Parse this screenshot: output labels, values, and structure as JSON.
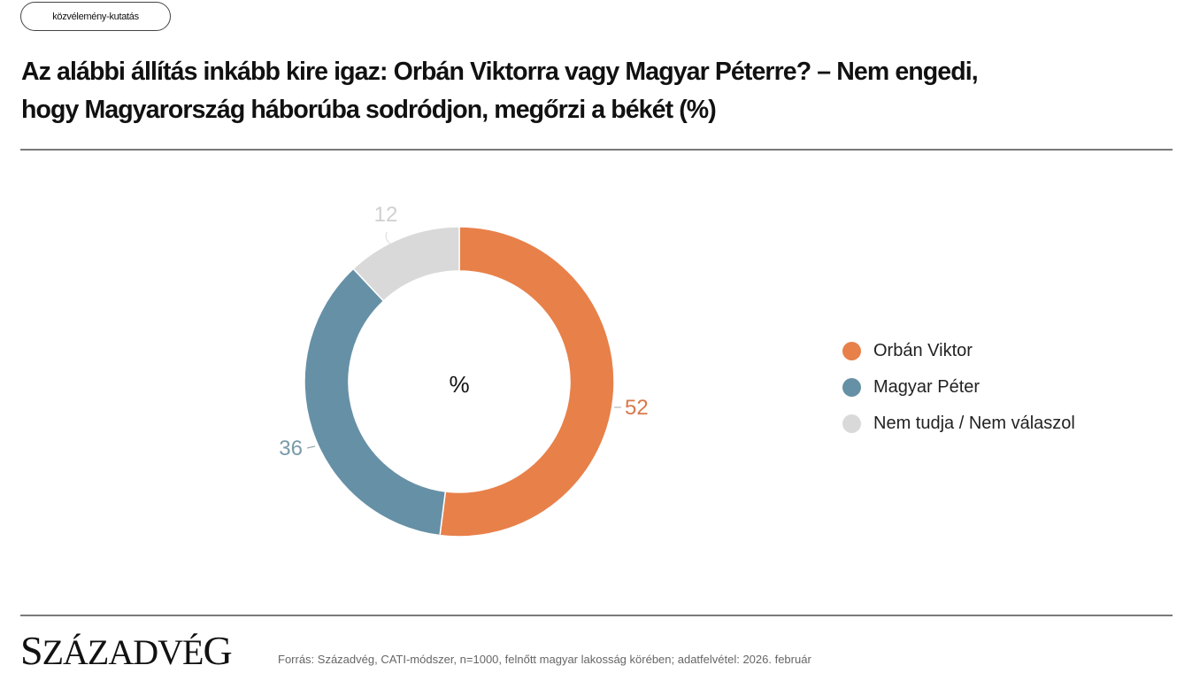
{
  "header": {
    "tag": "közvélemény-kutatás",
    "title_line1": "Az alábbi állítás inkább kire igaz: Orbán Viktorra vagy Magyar Péterre? – Nem engedi,",
    "title_line2": "hogy Magyarország háborúba sodródjon, megőrzi a békét (%)"
  },
  "chart_center_label": "%",
  "chart_data": {
    "type": "pie",
    "donut": true,
    "title": "Az alábbi állítás inkább kire igaz: Orbán Viktorra vagy Magyar Péterre? – Nem engedi, hogy Magyarország háborúba sodródjon, megőrzi a békét (%)",
    "center_label": "%",
    "categories": [
      "Orbán Viktor",
      "Magyar Péter",
      "Nem tudja / Nem válaszol"
    ],
    "values": [
      52,
      36,
      12
    ],
    "colors": [
      "#e8804a",
      "#6690a6",
      "#d9d9d9"
    ],
    "data_labels": [
      "52",
      "36",
      "12"
    ],
    "legend_position": "right",
    "start_angle": "12 o'clock, clockwise"
  },
  "legend": {
    "items": [
      {
        "label": "Orbán Viktor",
        "color": "#e8804a"
      },
      {
        "label": "Magyar Péter",
        "color": "#6690a6"
      },
      {
        "label": "Nem tudja / Nem válaszol",
        "color": "#d9d9d9"
      }
    ]
  },
  "footer": {
    "logo_first": "S",
    "logo_rest": "ZÁZADVÉ",
    "logo_last": "G",
    "source": "Forrás: Századvég, CATI-módszer, n=1000, felnőtt magyar lakosság körében; adatfelvétel: 2026. február"
  }
}
